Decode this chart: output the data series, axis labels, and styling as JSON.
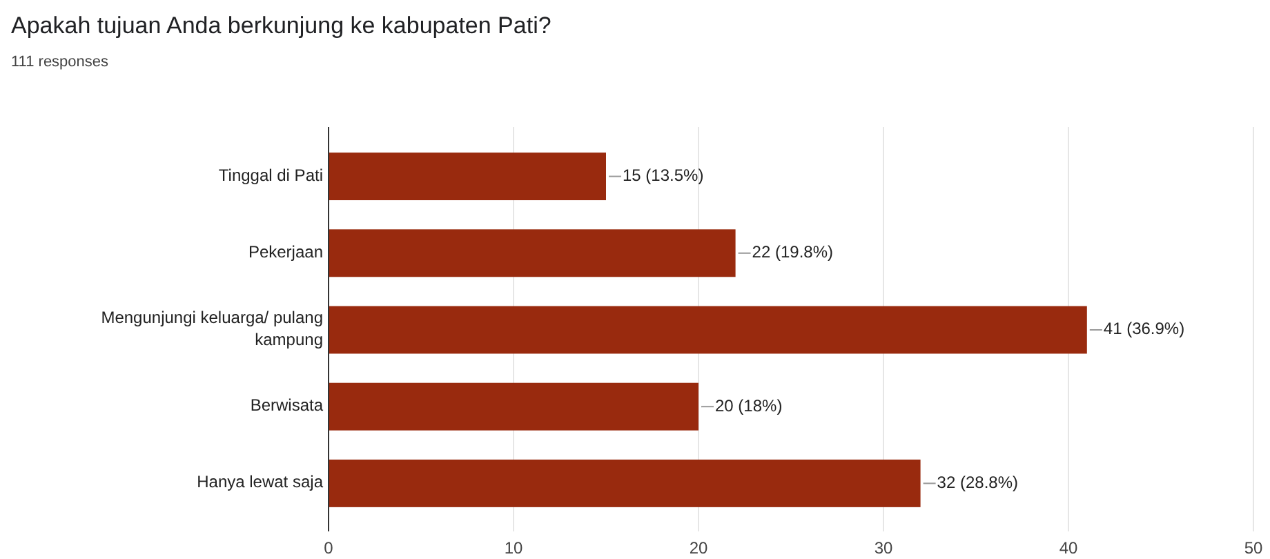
{
  "chart_data": {
    "type": "bar",
    "orientation": "horizontal",
    "title": "Apakah tujuan Anda berkunjung ke kabupaten Pati?",
    "subtitle": "111 responses",
    "categories": [
      "Tinggal di Pati",
      "Pekerjaan",
      "Mengunjungi keluarga/ pulang kampung",
      "Berwisata",
      "Hanya lewat saja"
    ],
    "values": [
      15,
      22,
      41,
      20,
      32
    ],
    "value_labels": [
      "15 (13.5%)",
      "22 (19.8%)",
      "41 (36.9%)",
      "20 (18%)",
      "32 (28.8%)"
    ],
    "color": "#992a0e",
    "xlim": [
      0,
      50
    ],
    "xticks": [
      0,
      10,
      20,
      30,
      40,
      50
    ],
    "grid": "x"
  }
}
